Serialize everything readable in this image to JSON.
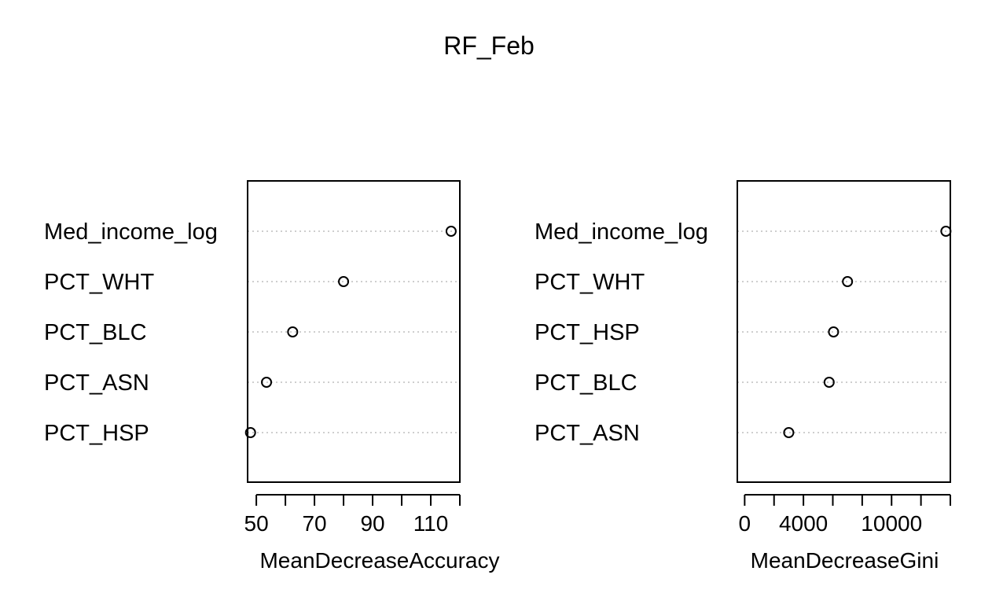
{
  "figure": {
    "title": "RF_Feb"
  },
  "chart_data": [
    {
      "type": "scatter",
      "variant": "dotchart",
      "xlabel": "MeanDecreaseAccuracy",
      "categories": [
        "Med_income_log",
        "PCT_WHT",
        "PCT_BLC",
        "PCT_ASN",
        "PCT_HSP"
      ],
      "values": [
        117,
        80,
        62.5,
        53.5,
        48
      ],
      "xlim": [
        47,
        120
      ],
      "ticks": [
        50,
        60,
        70,
        80,
        90,
        100,
        110,
        120
      ],
      "tick_labels": [
        "50",
        "",
        "70",
        "",
        "90",
        "",
        "110",
        ""
      ],
      "grid": "dotted horizontal",
      "point_shape": "open circle"
    },
    {
      "type": "scatter",
      "variant": "dotchart",
      "xlabel": "MeanDecreaseGini",
      "categories": [
        "Med_income_log",
        "PCT_WHT",
        "PCT_HSP",
        "PCT_BLC",
        "PCT_ASN"
      ],
      "values": [
        13700,
        7000,
        6050,
        5750,
        3000
      ],
      "xlim": [
        -500,
        14000
      ],
      "ticks": [
        0,
        2000,
        4000,
        6000,
        8000,
        10000,
        12000,
        14000
      ],
      "tick_labels": [
        "0",
        "",
        "4000",
        "",
        "",
        "10000",
        "",
        ""
      ],
      "grid": "dotted horizontal",
      "point_shape": "open circle"
    }
  ]
}
